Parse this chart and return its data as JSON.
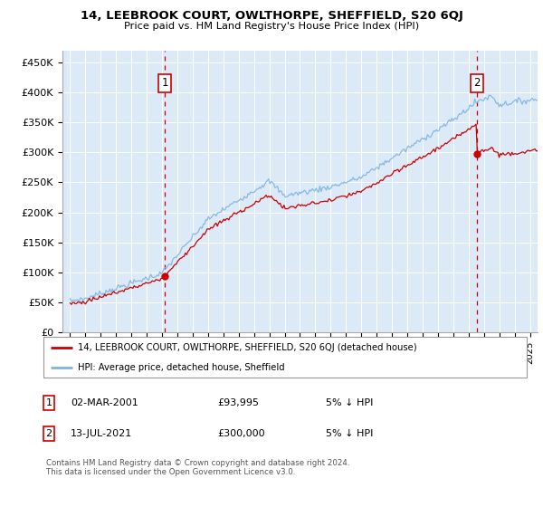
{
  "title": "14, LEEBROOK COURT, OWLTHORPE, SHEFFIELD, S20 6QJ",
  "subtitle": "Price paid vs. HM Land Registry's House Price Index (HPI)",
  "ylabel_ticks": [
    "£0",
    "£50K",
    "£100K",
    "£150K",
    "£200K",
    "£250K",
    "£300K",
    "£350K",
    "£400K",
    "£450K"
  ],
  "ylabel_values": [
    0,
    50000,
    100000,
    150000,
    200000,
    250000,
    300000,
    350000,
    400000,
    450000
  ],
  "ylim": [
    0,
    470000
  ],
  "xlim_start": 1994.5,
  "xlim_end": 2025.5,
  "bg_color": "#dce9f7",
  "grid_color": "#ffffff",
  "sale1_date": 2001.17,
  "sale1_price": 93995,
  "sale2_date": 2021.54,
  "sale2_price": 300000,
  "legend_line1": "14, LEEBROOK COURT, OWLTHORPE, SHEFFIELD, S20 6QJ (detached house)",
  "legend_line2": "HPI: Average price, detached house, Sheffield",
  "annotation1": [
    "1",
    "02-MAR-2001",
    "£93,995",
    "5% ↓ HPI"
  ],
  "annotation2": [
    "2",
    "13-JUL-2021",
    "£300,000",
    "5% ↓ HPI"
  ],
  "footnote": "Contains HM Land Registry data © Crown copyright and database right 2024.\nThis data is licensed under the Open Government Licence v3.0.",
  "hpi_color": "#7eb4e0",
  "price_color": "#cc0000",
  "dashed_color": "#cc0000"
}
